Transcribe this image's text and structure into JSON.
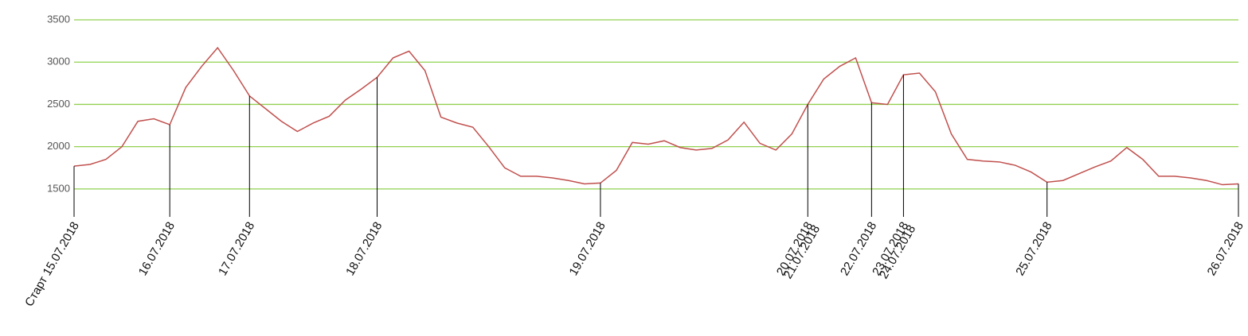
{
  "chart_data": {
    "type": "line",
    "categories": [
      "Старт 15.07.2018",
      null,
      null,
      null,
      null,
      null,
      "16.07.2018",
      null,
      null,
      null,
      null,
      "17.07.2018",
      null,
      null,
      null,
      null,
      null,
      null,
      null,
      "18.07.2018",
      null,
      null,
      null,
      null,
      null,
      null,
      null,
      null,
      null,
      null,
      null,
      null,
      null,
      "19.07.2018",
      null,
      null,
      null,
      null,
      null,
      null,
      null,
      null,
      null,
      null,
      null,
      null,
      [
        "20.07.2018",
        "21.07.2018"
      ],
      null,
      null,
      null,
      "22.07.2018",
      null,
      [
        "23.07.2018",
        "24.07.2018"
      ],
      null,
      null,
      null,
      null,
      null,
      null,
      null,
      null,
      "25.07.2018",
      null,
      null,
      null,
      null,
      null,
      null,
      null,
      null,
      null,
      null,
      null,
      "26.07.2018"
    ],
    "series": [
      {
        "color": "#c0504d",
        "values": [
          1770,
          1790,
          1850,
          2000,
          2300,
          2330,
          2260,
          2700,
          2950,
          3170,
          2900,
          2600,
          2450,
          2300,
          2180,
          2280,
          2360,
          2550,
          2680,
          2820,
          3050,
          3130,
          2900,
          2350,
          2280,
          2230,
          2000,
          1750,
          1650,
          1650,
          1630,
          1600,
          1560,
          1570,
          1720,
          2050,
          2030,
          2070,
          1990,
          1960,
          1980,
          2080,
          2290,
          2040,
          1960,
          2150,
          2500,
          2800,
          2950,
          3050,
          2520,
          2500,
          2850,
          2870,
          2650,
          2150,
          1850,
          1830,
          1820,
          1780,
          1700,
          1580,
          1600,
          1680,
          1760,
          1830,
          1990,
          1850,
          1650,
          1650,
          1630,
          1600,
          1550,
          1560
        ]
      }
    ],
    "ylim": [
      1170,
      3500
    ],
    "yticks": [
      1500,
      2000,
      2500,
      3000,
      3500
    ],
    "grid": true,
    "grid_color": "#92d050"
  }
}
